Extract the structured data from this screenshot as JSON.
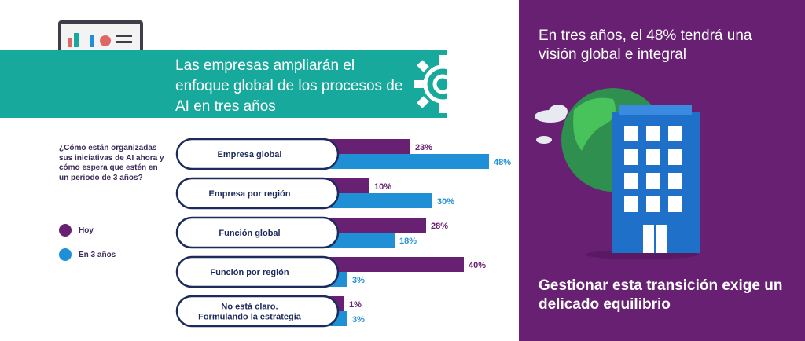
{
  "banner": {
    "title": "Las empresas ampliarán el enfoque global de los procesos de AI en tres años"
  },
  "question": "¿Cómo están organizadas sus iniciativas de AI ahora y cómo espera que estén en un periodo de 3 años?",
  "legend": [
    {
      "label": "Hoy",
      "color": "#682072"
    },
    {
      "label": "En 3 años",
      "color": "#1f8fd6"
    }
  ],
  "right_panel": {
    "title": "En tres años, el 48% tendrá una visión global e integral",
    "footer": "Gestionar esta transición exige un delicado equilibrio"
  },
  "chart_data": {
    "type": "bar",
    "orientation": "horizontal",
    "categories": [
      [
        "Empresa global"
      ],
      [
        "Empresa por región"
      ],
      [
        "Función global"
      ],
      [
        "Función por región"
      ],
      [
        "No está claro.",
        "Formulando la estrategia"
      ]
    ],
    "series": [
      {
        "name": "Hoy",
        "color": "#682072",
        "values": [
          23,
          10,
          28,
          40,
          1
        ],
        "labels": [
          "23%",
          "10%",
          "28%",
          "40%",
          "1%"
        ]
      },
      {
        "name": "En 3 años",
        "color": "#1f8fd6",
        "values": [
          48,
          30,
          18,
          3,
          3
        ],
        "labels": [
          "48%",
          "30%",
          "18%",
          "3%",
          "3%"
        ]
      }
    ],
    "unit": "%",
    "xlim": [
      0,
      48
    ]
  }
}
